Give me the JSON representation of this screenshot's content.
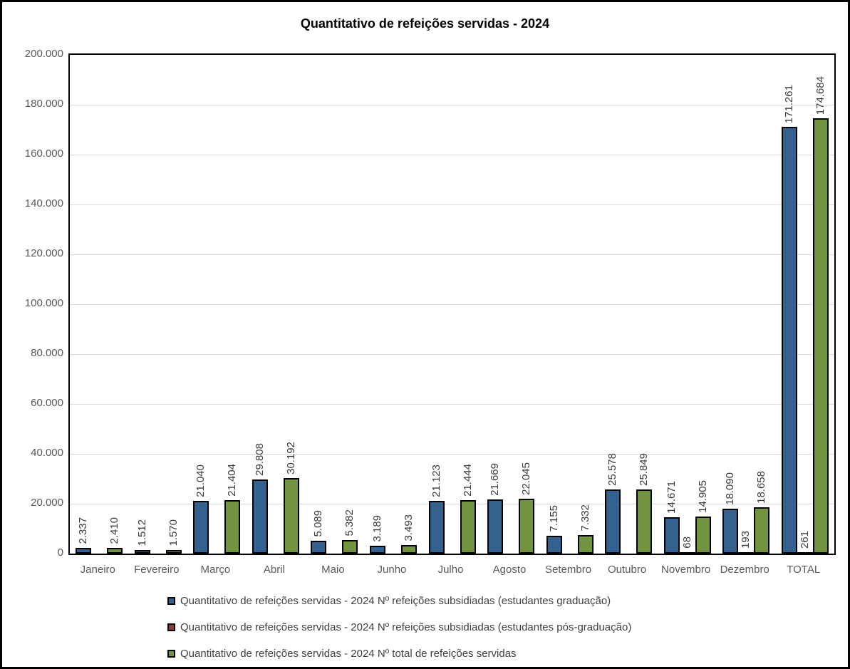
{
  "chart_data": {
    "type": "bar",
    "title": "Quantitativo de refeições servidas - 2024",
    "categories": [
      "Janeiro",
      "Fevereiro",
      "Março",
      "Abril",
      "Maio",
      "Junho",
      "Julho",
      "Agosto",
      "Setembro",
      "Outubro",
      "Novembro",
      "Dezembro",
      "TOTAL"
    ],
    "series": [
      {
        "name": "Quantitativo de refeições servidas - 2024 Nº refeições subsidiadas (estudantes graduação)",
        "color": "#35618F",
        "values": [
          2337,
          1512,
          21040,
          29808,
          5089,
          3189,
          21123,
          21669,
          7155,
          25578,
          14671,
          18090,
          171261
        ],
        "labels": [
          "2.337",
          "1.512",
          "21.040",
          "29.808",
          "5.089",
          "3.189",
          "21.123",
          "21.669",
          "7.155",
          "25.578",
          "14.671",
          "18.090",
          "171.261"
        ]
      },
      {
        "name": "Quantitativo de refeições servidas - 2024 Nº refeições subsidiadas (estudantes pós-graduação)",
        "color": "#943634",
        "values": [
          null,
          null,
          null,
          null,
          null,
          null,
          null,
          null,
          null,
          null,
          68,
          193,
          261
        ],
        "labels": [
          null,
          null,
          null,
          null,
          null,
          null,
          null,
          null,
          null,
          null,
          "68",
          "193",
          "261"
        ]
      },
      {
        "name": "Quantitativo de refeições servidas - 2024 Nº total de refeições servidas",
        "color": "#72933F",
        "values": [
          2410,
          1570,
          21404,
          30192,
          5382,
          3493,
          21444,
          22045,
          7332,
          25849,
          14905,
          18658,
          174684
        ],
        "labels": [
          "2.410",
          "1.570",
          "21.404",
          "30.192",
          "5.382",
          "3.493",
          "21.444",
          "22.045",
          "7.332",
          "25.849",
          "14.905",
          "18.658",
          "174.684"
        ]
      }
    ],
    "ylim": [
      0,
      200000
    ],
    "ytick_step": 20000,
    "ytick_labels": [
      "0",
      "20.000",
      "40.000",
      "60.000",
      "80.000",
      "100.000",
      "120.000",
      "140.000",
      "160.000",
      "180.000",
      "200.000"
    ],
    "grid": true,
    "legend_position": "bottom",
    "colors": {
      "bar_outline": "#000000",
      "gridline": "#D9D9D9",
      "axis_text": "#595959",
      "data_label_text": "#3A3A3A",
      "legend_text": "#404040",
      "title_text": "#000000",
      "background": "#FFFFFF",
      "frame_border": "#000000"
    }
  }
}
